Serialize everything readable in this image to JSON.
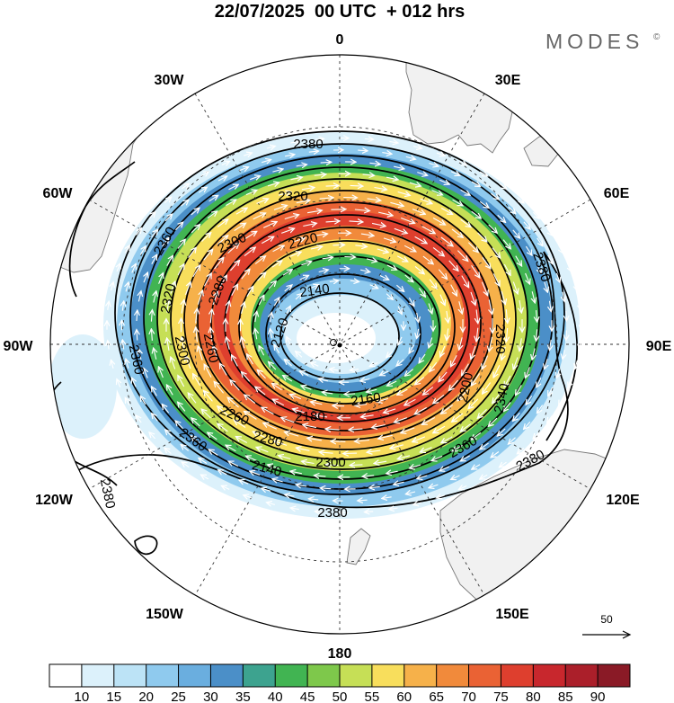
{
  "title": "22/07/2025  00 UTC  + 012 hrs",
  "brand": {
    "text": "MODES",
    "mark": "©"
  },
  "map": {
    "projection": "polar stereographic",
    "hemisphere": "south",
    "longitude_labels": [
      {
        "id": "0",
        "text": "0"
      },
      {
        "id": "30E",
        "text": "30E"
      },
      {
        "id": "60E",
        "text": "60E"
      },
      {
        "id": "90E",
        "text": "90E"
      },
      {
        "id": "120E",
        "text": "120E"
      },
      {
        "id": "150E",
        "text": "150E"
      },
      {
        "id": "180",
        "text": "180"
      },
      {
        "id": "150W",
        "text": "150W"
      },
      {
        "id": "120W",
        "text": "120W"
      },
      {
        "id": "90W",
        "text": "90W"
      },
      {
        "id": "60W",
        "text": "60W"
      },
      {
        "id": "30W",
        "text": "30W"
      }
    ],
    "contour_labels": [
      {
        "id": "c1",
        "text": "2380"
      },
      {
        "id": "c2",
        "text": "2320"
      },
      {
        "id": "c3",
        "text": "2300"
      },
      {
        "id": "c4",
        "text": "2220"
      },
      {
        "id": "c5",
        "text": "2360"
      },
      {
        "id": "c6",
        "text": "2320"
      },
      {
        "id": "c7",
        "text": "2280"
      },
      {
        "id": "c8",
        "text": "2140"
      },
      {
        "id": "c9",
        "text": "2120"
      },
      {
        "id": "c10",
        "text": "2380"
      },
      {
        "id": "c11",
        "text": "2300"
      },
      {
        "id": "c12",
        "text": "2260"
      },
      {
        "id": "c13",
        "text": "2320"
      },
      {
        "id": "c14",
        "text": "2360"
      },
      {
        "id": "c15",
        "text": "2200"
      },
      {
        "id": "c16",
        "text": "2160"
      },
      {
        "id": "c17",
        "text": "2180"
      },
      {
        "id": "c18",
        "text": "2340"
      },
      {
        "id": "c19",
        "text": "2260"
      },
      {
        "id": "c20",
        "text": "2280"
      },
      {
        "id": "c21",
        "text": "2360"
      },
      {
        "id": "c22",
        "text": "2380"
      },
      {
        "id": "c23",
        "text": "2360"
      },
      {
        "id": "c24",
        "text": "2140"
      },
      {
        "id": "c25",
        "text": "2300"
      },
      {
        "id": "c26",
        "text": "2380"
      },
      {
        "id": "c27",
        "text": "2380"
      }
    ],
    "vector_reference": {
      "value": "50"
    }
  },
  "colorbar": {
    "ticks": [
      "10",
      "15",
      "20",
      "25",
      "30",
      "35",
      "40",
      "45",
      "50",
      "55",
      "60",
      "65",
      "70",
      "75",
      "80",
      "85",
      "90"
    ],
    "colors": [
      "#ffffff",
      "#dcf1fb",
      "#bce3f6",
      "#8fcaee",
      "#6aaedf",
      "#4b8fc8",
      "#3da38f",
      "#41b452",
      "#7ec84b",
      "#c6df56",
      "#f8de5c",
      "#f6b14a",
      "#f18a3b",
      "#ea6234",
      "#de3f2e",
      "#c8272d",
      "#ab1f2a",
      "#8a1a26"
    ]
  }
}
